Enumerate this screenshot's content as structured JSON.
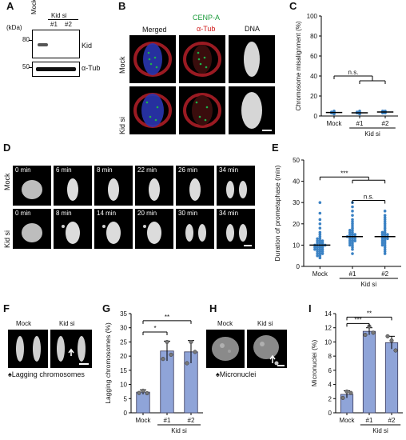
{
  "panels": {
    "A": "A",
    "B": "B",
    "C": "C",
    "D": "D",
    "E": "E",
    "F": "F",
    "G": "G",
    "H": "H",
    "I": "I"
  },
  "blot": {
    "unit": "(kDa)",
    "mw_top": "80",
    "mw_bottom": "50",
    "lane_mock": "Mock",
    "lane_1": "#1",
    "lane_2": "#2",
    "group": "Kid si",
    "band_top": "Kid",
    "band_bottom": "α-Tub"
  },
  "panelB": {
    "col1": "Merged",
    "col2_line1": "CENP-A",
    "col2_line2": "α-Tub",
    "col3": "DNA",
    "row1": "Mock",
    "row2": "Kid si",
    "colors": {
      "cenpa": "#1a9a3a",
      "tub": "#d01b1b"
    }
  },
  "panelD": {
    "row1": "Mock",
    "row2": "Kid si",
    "mock_times": [
      "0 min",
      "6 min",
      "8 min",
      "22 min",
      "26 min",
      "34 min"
    ],
    "kid_times": [
      "0 min",
      "8 min",
      "14 min",
      "20 min",
      "30 min",
      "34 min"
    ]
  },
  "panelF": {
    "mock": "Mock",
    "kid": "Kid si",
    "caption": "♠Lagging chromosomes"
  },
  "panelH": {
    "mock": "Mock",
    "kid": "Kid si",
    "caption": "♠Micronuclei"
  },
  "chart_data": [
    {
      "panel": "C",
      "type": "scatter",
      "ylabel": "Chromosome misalignment (%)",
      "ylim": [
        0,
        100
      ],
      "yticks": [
        0,
        20,
        40,
        60,
        80,
        100
      ],
      "categories": [
        "Mock",
        "#1",
        "#2"
      ],
      "group_label": "Kid si",
      "values": [
        3.5,
        3.2,
        4.0
      ],
      "points": [
        [
          2,
          3,
          4,
          5,
          3,
          4
        ],
        [
          2,
          3,
          4,
          3,
          5,
          4
        ],
        [
          3,
          4,
          5,
          4,
          5,
          3
        ]
      ],
      "significance": [
        {
          "label": "n.s."
        }
      ]
    },
    {
      "panel": "E",
      "type": "scatter",
      "ylabel": "Duration of prometaphase (min)",
      "ylim": [
        0,
        50
      ],
      "yticks": [
        0,
        10,
        20,
        30,
        40,
        50
      ],
      "categories": [
        "Mock",
        "#1",
        "#2"
      ],
      "group_label": "Kid si",
      "medians": [
        10,
        14,
        14
      ],
      "points": [
        [
          4,
          5,
          5,
          6,
          6,
          6,
          7,
          7,
          7,
          8,
          8,
          8,
          8,
          9,
          9,
          9,
          9,
          10,
          10,
          10,
          10,
          10,
          11,
          11,
          11,
          12,
          12,
          12,
          13,
          13,
          14,
          15,
          16,
          18,
          20,
          22,
          25,
          30
        ],
        [
          6,
          8,
          9,
          10,
          10,
          11,
          11,
          12,
          12,
          12,
          13,
          13,
          13,
          14,
          14,
          14,
          14,
          15,
          15,
          15,
          16,
          16,
          17,
          17,
          18,
          19,
          20,
          21,
          22,
          24,
          26,
          28,
          30
        ],
        [
          6,
          7,
          8,
          9,
          10,
          10,
          11,
          11,
          12,
          12,
          13,
          13,
          13,
          14,
          14,
          14,
          15,
          15,
          15,
          16,
          16,
          17,
          18,
          19,
          20,
          21,
          22,
          23,
          24,
          26
        ]
      ],
      "significance": [
        {
          "label": "***"
        },
        {
          "label": "n.s."
        }
      ]
    },
    {
      "panel": "G",
      "type": "bar",
      "ylabel": "Lagging chromosomes (%)",
      "ylim": [
        0,
        35
      ],
      "yticks": [
        0,
        5,
        10,
        15,
        20,
        25,
        30,
        35
      ],
      "categories": [
        "Mock",
        "#1",
        "#2"
      ],
      "group_label": "Kid si",
      "values": [
        7.3,
        21.8,
        21.5
      ],
      "errors": [
        0.8,
        3.5,
        4.0
      ],
      "points": [
        [
          7.0,
          7.8,
          6.9
        ],
        [
          19.0,
          25.0,
          20.5
        ],
        [
          17.5,
          25.0,
          21.5
        ]
      ],
      "significance": [
        {
          "label": "*"
        },
        {
          "label": "**"
        }
      ]
    },
    {
      "panel": "I",
      "type": "bar",
      "ylabel": "Micronuclei (%)",
      "ylim": [
        0,
        14
      ],
      "yticks": [
        0,
        2,
        4,
        6,
        8,
        10,
        12,
        14
      ],
      "categories": [
        "Mock",
        "#1",
        "#2"
      ],
      "group_label": "Kid si",
      "values": [
        2.6,
        11.5,
        9.9
      ],
      "errors": [
        0.5,
        0.5,
        0.9
      ],
      "points": [
        [
          2.1,
          3.0,
          2.8
        ],
        [
          11.0,
          12.2,
          11.3
        ],
        [
          10.8,
          10.2,
          8.8
        ]
      ],
      "significance": [
        {
          "label": "***"
        },
        {
          "label": "**"
        }
      ]
    }
  ],
  "colors": {
    "bar": "#8fa4d8",
    "bar_edge": "#3a3a5a",
    "dot": "#3b82c4"
  }
}
